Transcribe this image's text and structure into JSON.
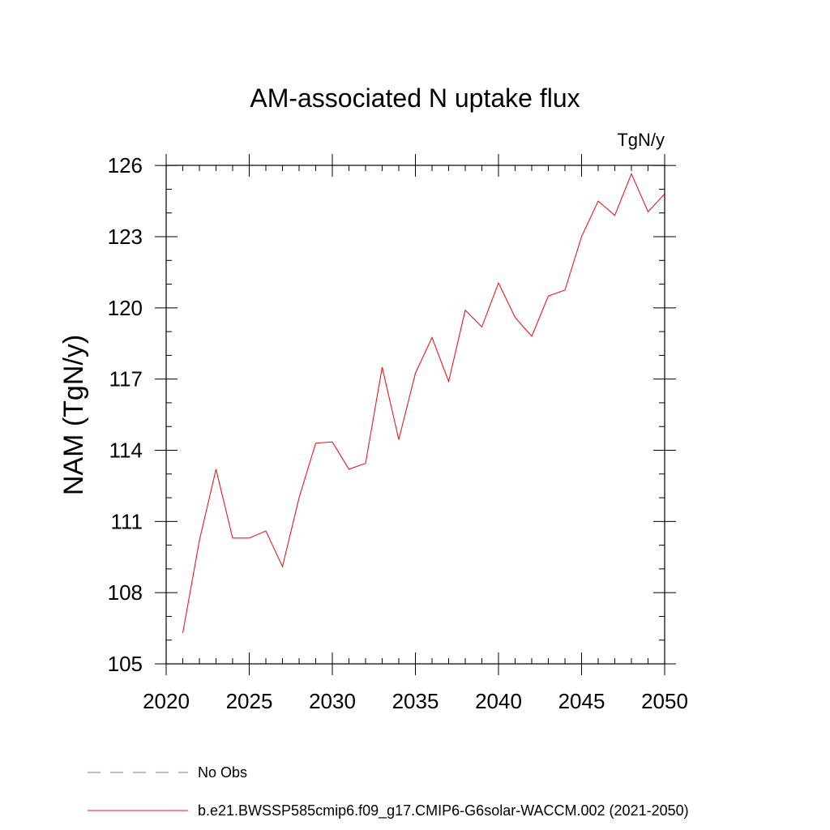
{
  "chart_data": {
    "type": "line",
    "title": "AM-associated N uptake flux",
    "units_label": "TgN/y",
    "ylabel": "NAM  (TgN/y)",
    "xlabel": "",
    "xlim": [
      2020,
      2050
    ],
    "ylim": [
      105,
      126.5
    ],
    "x_ticks": [
      2020,
      2025,
      2030,
      2035,
      2040,
      2045,
      2050
    ],
    "y_ticks": [
      105,
      108,
      111,
      114,
      117,
      120,
      123,
      126
    ],
    "grid": false,
    "legend_placement": "bottom",
    "series": [
      {
        "name": "b.e21.BWSSP585cmip6.f09_g17.CMIP6-G6solar-WACCM.002 (2021-2050)",
        "color": "#e8191e",
        "style": "solid",
        "x": [
          2021,
          2022,
          2023,
          2024,
          2025,
          2026,
          2027,
          2028,
          2029,
          2030,
          2031,
          2032,
          2033,
          2034,
          2035,
          2036,
          2037,
          2038,
          2039,
          2040,
          2041,
          2042,
          2043,
          2044,
          2045,
          2046,
          2047,
          2048,
          2049,
          2050
        ],
        "values": [
          106.3,
          110.2,
          113.2,
          110.3,
          110.3,
          110.6,
          109.1,
          112.0,
          114.3,
          114.35,
          113.2,
          113.45,
          117.5,
          114.45,
          117.25,
          118.75,
          116.9,
          119.9,
          119.2,
          121.05,
          119.6,
          118.8,
          120.5,
          120.75,
          123.0,
          124.5,
          123.9,
          125.65,
          124.05,
          124.8
        ]
      }
    ],
    "legend": [
      {
        "label": "No Obs",
        "color": "#7b6fb0",
        "style": "dashed"
      },
      {
        "label": "b.e21.BWSSP585cmip6.f09_g17.CMIP6-G6solar-WACCM.002 (2021-2050)",
        "color": "#e8191e",
        "style": "solid"
      }
    ]
  }
}
